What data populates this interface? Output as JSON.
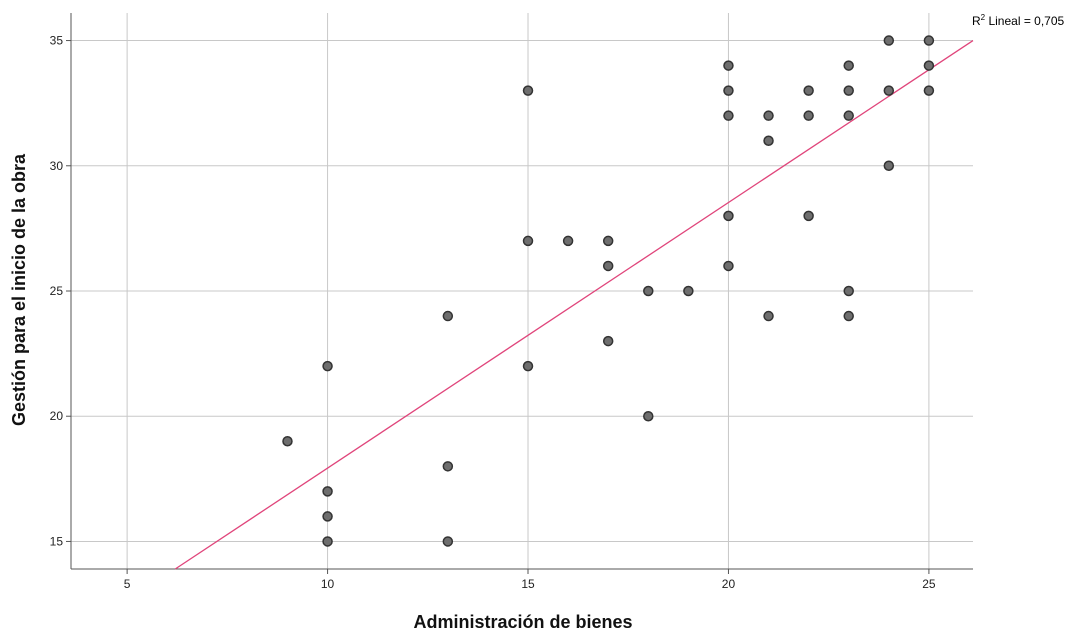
{
  "chart_data": {
    "type": "scatter",
    "xlabel": "Administración de bienes",
    "ylabel": "Gestión para el inicio de la obra",
    "xlim": [
      3.6,
      26.1
    ],
    "ylim": [
      13.9,
      36.1
    ],
    "xticks": [
      5,
      10,
      15,
      20,
      25
    ],
    "yticks": [
      15,
      20,
      25,
      30,
      35
    ],
    "grid": true,
    "fit_line": {
      "label_prefix": "R",
      "label_sup": "2",
      "label_suffix": " Lineal = 0,705",
      "x": [
        6.2,
        26.1
      ],
      "y": [
        13.9,
        35.0
      ]
    },
    "points": [
      {
        "x": 9,
        "y": 19
      },
      {
        "x": 10,
        "y": 22
      },
      {
        "x": 10,
        "y": 17
      },
      {
        "x": 10,
        "y": 16
      },
      {
        "x": 10,
        "y": 15
      },
      {
        "x": 13,
        "y": 24
      },
      {
        "x": 13,
        "y": 18
      },
      {
        "x": 13,
        "y": 15
      },
      {
        "x": 15,
        "y": 33
      },
      {
        "x": 15,
        "y": 27
      },
      {
        "x": 15,
        "y": 22
      },
      {
        "x": 16,
        "y": 27
      },
      {
        "x": 17,
        "y": 27
      },
      {
        "x": 17,
        "y": 26
      },
      {
        "x": 17,
        "y": 23
      },
      {
        "x": 18,
        "y": 25
      },
      {
        "x": 18,
        "y": 20
      },
      {
        "x": 19,
        "y": 25
      },
      {
        "x": 20,
        "y": 34
      },
      {
        "x": 20,
        "y": 33
      },
      {
        "x": 20,
        "y": 32
      },
      {
        "x": 20,
        "y": 28
      },
      {
        "x": 20,
        "y": 26
      },
      {
        "x": 21,
        "y": 32
      },
      {
        "x": 21,
        "y": 31
      },
      {
        "x": 21,
        "y": 24
      },
      {
        "x": 22,
        "y": 33
      },
      {
        "x": 22,
        "y": 32
      },
      {
        "x": 22,
        "y": 28
      },
      {
        "x": 23,
        "y": 34
      },
      {
        "x": 23,
        "y": 33
      },
      {
        "x": 23,
        "y": 32
      },
      {
        "x": 23,
        "y": 25
      },
      {
        "x": 23,
        "y": 24
      },
      {
        "x": 24,
        "y": 35
      },
      {
        "x": 24,
        "y": 33
      },
      {
        "x": 24,
        "y": 30
      },
      {
        "x": 25,
        "y": 35
      },
      {
        "x": 25,
        "y": 34
      },
      {
        "x": 25,
        "y": 33
      }
    ],
    "colors": {
      "point_fill": "#6e6e6e",
      "point_stroke": "#333333",
      "fit_line": "#e0457b",
      "grid": "#c8c8c8",
      "axis": "#555555"
    }
  }
}
